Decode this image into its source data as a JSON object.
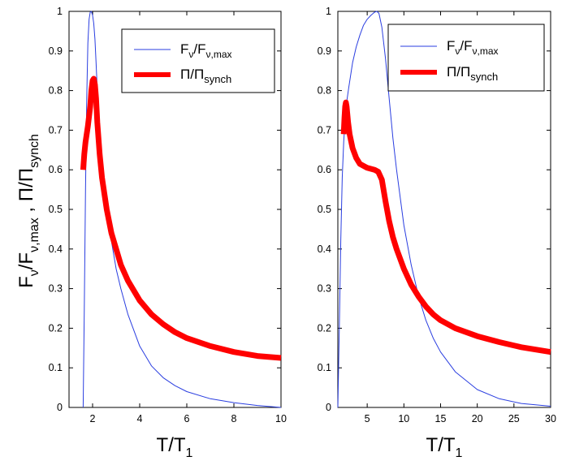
{
  "chart_data": [
    {
      "type": "line",
      "panel": "left",
      "xlabel_main": "T/T",
      "xlabel_sub": "1",
      "ylabel": {
        "p1": "F",
        "p1_sub": "ν",
        "p2": "/F",
        "p2_sub": "ν,max",
        "p3": " , Π/Π",
        "p3_sub": "synch"
      },
      "xlim": [
        1,
        10
      ],
      "ylim": [
        0,
        1
      ],
      "xticks": [
        2,
        4,
        6,
        8,
        10
      ],
      "yticks": [
        0,
        0.1,
        0.2,
        0.3,
        0.4,
        0.5,
        0.6,
        0.7,
        0.8,
        0.9,
        1
      ],
      "legend": {
        "position": "top-right",
        "entries": [
          {
            "label": "F",
            "sub1": "ν",
            "mid": "/F",
            "sub2": "ν,max",
            "color": "#2a3ee0",
            "style": "thin"
          },
          {
            "label": "Π/Π",
            "sub1": "synch",
            "mid": "",
            "sub2": "",
            "color": "#ff0000",
            "style": "thick"
          }
        ]
      },
      "series": [
        {
          "name": "F_nu/F_nu,max",
          "color": "#2a3ee0",
          "width": "thin",
          "x": [
            1.6,
            1.65,
            1.7,
            1.75,
            1.8,
            1.85,
            1.9,
            1.95,
            2.0,
            2.05,
            2.1,
            2.15,
            2.2,
            2.3,
            2.4,
            2.5,
            2.6,
            2.8,
            3.0,
            3.2,
            3.5,
            4.0,
            4.5,
            5.0,
            5.5,
            6.0,
            7.0,
            8.0,
            9.0,
            10.0
          ],
          "y": [
            0.0,
            0.25,
            0.55,
            0.78,
            0.92,
            0.98,
            0.998,
            1.0,
            0.99,
            0.97,
            0.93,
            0.87,
            0.8,
            0.7,
            0.62,
            0.56,
            0.5,
            0.42,
            0.35,
            0.3,
            0.235,
            0.155,
            0.105,
            0.075,
            0.055,
            0.04,
            0.022,
            0.012,
            0.005,
            0.0
          ]
        },
        {
          "name": "Pi/Pi_synch",
          "color": "#ff0000",
          "width": "thick",
          "x": [
            1.6,
            1.65,
            1.7,
            1.8,
            1.9,
            1.95,
            2.0,
            2.05,
            2.1,
            2.15,
            2.2,
            2.3,
            2.4,
            2.6,
            2.8,
            3.0,
            3.2,
            3.5,
            4.0,
            4.5,
            5.0,
            5.5,
            6.0,
            7.0,
            8.0,
            9.0,
            10.0
          ],
          "y": [
            0.6,
            0.64,
            0.67,
            0.71,
            0.76,
            0.8,
            0.825,
            0.83,
            0.815,
            0.78,
            0.72,
            0.64,
            0.58,
            0.5,
            0.44,
            0.4,
            0.36,
            0.32,
            0.27,
            0.235,
            0.21,
            0.19,
            0.175,
            0.155,
            0.14,
            0.13,
            0.125
          ]
        }
      ]
    },
    {
      "type": "line",
      "panel": "right",
      "xlabel_main": "T/T",
      "xlabel_sub": "1",
      "xlim": [
        1,
        30
      ],
      "ylim": [
        0,
        1
      ],
      "xticks": [
        5,
        10,
        15,
        20,
        25,
        30
      ],
      "yticks": [
        0,
        0.1,
        0.2,
        0.3,
        0.4,
        0.5,
        0.6,
        0.7,
        0.8,
        0.9,
        1
      ],
      "legend": {
        "position": "top-right",
        "entries": [
          {
            "label": "F",
            "sub1": "ν",
            "mid": "/F",
            "sub2": "ν,max",
            "color": "#2a3ee0",
            "style": "thin"
          },
          {
            "label": "Π/Π",
            "sub1": "synch",
            "mid": "",
            "sub2": "",
            "color": "#ff0000",
            "style": "thick"
          }
        ]
      },
      "series": [
        {
          "name": "F_nu/F_nu,max",
          "color": "#2a3ee0",
          "width": "thin",
          "x": [
            1.0,
            1.2,
            1.4,
            1.6,
            1.8,
            2.0,
            2.2,
            2.5,
            3.0,
            3.5,
            4.0,
            4.5,
            5.0,
            5.5,
            6.0,
            6.3,
            6.6,
            7.0,
            7.5,
            8.0,
            8.5,
            9.0,
            10.0,
            11.0,
            12.0,
            13.0,
            14.0,
            15.0,
            17.0,
            20.0,
            23.0,
            26.0,
            30.0
          ],
          "y": [
            0.0,
            0.2,
            0.42,
            0.58,
            0.67,
            0.73,
            0.77,
            0.81,
            0.87,
            0.91,
            0.94,
            0.965,
            0.98,
            0.99,
            0.998,
            1.0,
            0.995,
            0.96,
            0.88,
            0.78,
            0.68,
            0.6,
            0.46,
            0.36,
            0.28,
            0.22,
            0.175,
            0.14,
            0.09,
            0.045,
            0.022,
            0.01,
            0.003
          ]
        },
        {
          "name": "Pi/Pi_synch",
          "color": "#ff0000",
          "width": "thick",
          "x": [
            1.8,
            1.9,
            2.0,
            2.1,
            2.2,
            2.4,
            2.6,
            3.0,
            3.5,
            4.0,
            5.0,
            6.0,
            6.5,
            7.0,
            7.5,
            8.0,
            8.5,
            9.0,
            10.0,
            11.0,
            12.0,
            13.0,
            14.0,
            15.0,
            17.0,
            20.0,
            23.0,
            26.0,
            30.0
          ],
          "y": [
            0.69,
            0.73,
            0.76,
            0.77,
            0.76,
            0.72,
            0.69,
            0.655,
            0.63,
            0.615,
            0.605,
            0.6,
            0.595,
            0.575,
            0.52,
            0.47,
            0.43,
            0.4,
            0.35,
            0.31,
            0.28,
            0.255,
            0.235,
            0.22,
            0.2,
            0.18,
            0.165,
            0.152,
            0.14
          ]
        }
      ]
    }
  ]
}
